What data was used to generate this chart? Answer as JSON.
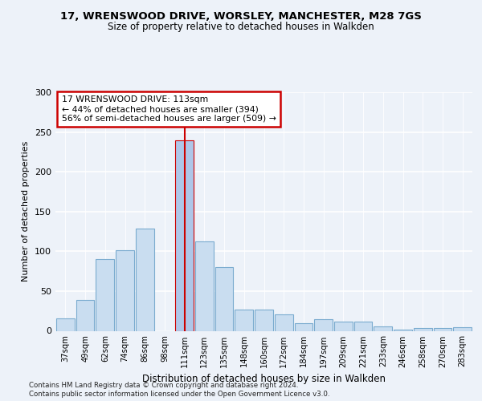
{
  "title1": "17, WRENSWOOD DRIVE, WORSLEY, MANCHESTER, M28 7GS",
  "title2": "Size of property relative to detached houses in Walkden",
  "xlabel": "Distribution of detached houses by size in Walkden",
  "ylabel": "Number of detached properties",
  "categories": [
    "37sqm",
    "49sqm",
    "62sqm",
    "74sqm",
    "86sqm",
    "98sqm",
    "111sqm",
    "123sqm",
    "135sqm",
    "148sqm",
    "160sqm",
    "172sqm",
    "184sqm",
    "197sqm",
    "209sqm",
    "221sqm",
    "233sqm",
    "246sqm",
    "258sqm",
    "270sqm",
    "283sqm"
  ],
  "values": [
    16,
    39,
    90,
    101,
    129,
    0,
    240,
    112,
    80,
    27,
    27,
    21,
    10,
    15,
    12,
    12,
    6,
    2,
    4,
    4,
    5
  ],
  "highlight_index": 6,
  "highlight_color": "#aec6e8",
  "bar_color": "#c9ddf0",
  "bar_edge_color": "#7aabcf",
  "highlight_edge_color": "#cc0000",
  "annotation_box_color": "#cc0000",
  "annotation_text": "17 WRENSWOOD DRIVE: 113sqm\n← 44% of detached houses are smaller (394)\n56% of semi-detached houses are larger (509) →",
  "ylim": [
    0,
    300
  ],
  "yticks": [
    0,
    50,
    100,
    150,
    200,
    250,
    300
  ],
  "footer1": "Contains HM Land Registry data © Crown copyright and database right 2024.",
  "footer2": "Contains public sector information licensed under the Open Government Licence v3.0.",
  "bg_color": "#edf2f9",
  "plot_bg_color": "#edf2f9"
}
